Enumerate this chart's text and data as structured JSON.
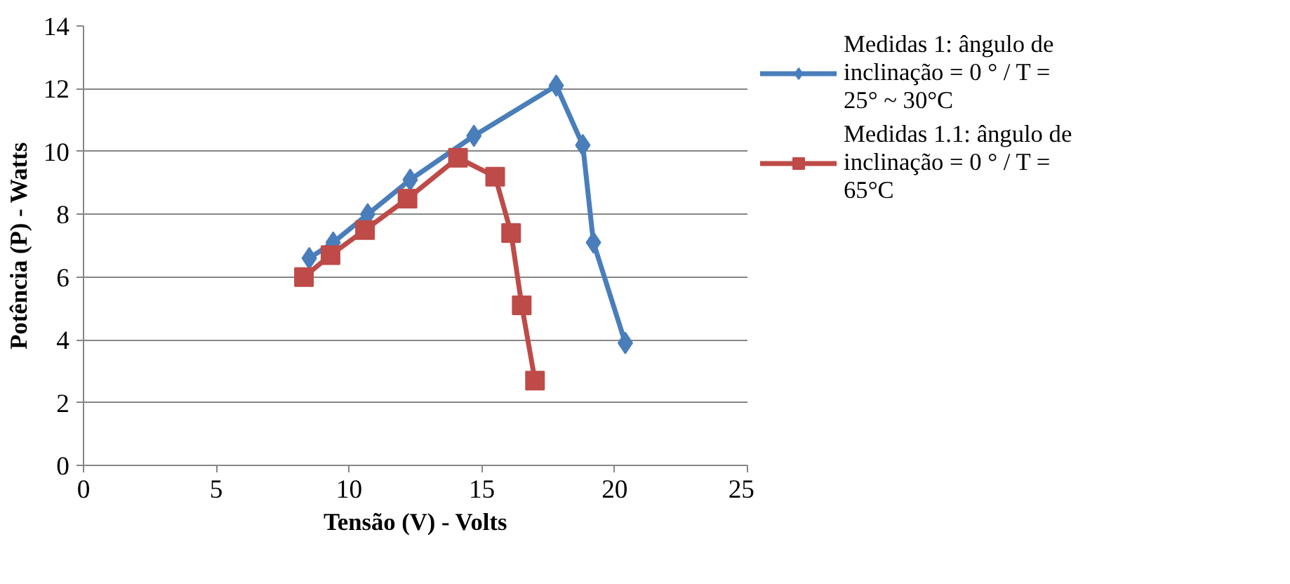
{
  "chart_data": {
    "type": "line",
    "xlabel": "Tensão (V) - Volts",
    "ylabel": "Potência (P) - Watts",
    "xlim": [
      0,
      25
    ],
    "xticks": [
      0,
      5,
      10,
      15,
      20,
      25
    ],
    "ylim": [
      0,
      14
    ],
    "yticks": [
      0,
      2,
      4,
      6,
      8,
      10,
      12,
      14
    ],
    "grid": "y",
    "legend": "right",
    "series": [
      {
        "name": "Medidas 1: ângulo de inclinação = 0 ° / T = 25° ~ 30°C",
        "color": "#4a7ebb",
        "marker": "diamond",
        "x": [
          8.5,
          9.4,
          10.7,
          12.3,
          14.7,
          17.8,
          18.8,
          19.2,
          20.4
        ],
        "values": [
          6.6,
          7.1,
          8.0,
          9.1,
          10.5,
          12.1,
          10.2,
          7.1,
          3.9
        ]
      },
      {
        "name": "Medidas 1.1: ângulo de inclinação = 0 ° / T = 65°C",
        "color": "#be4b48",
        "marker": "square",
        "x": [
          8.3,
          9.3,
          10.6,
          12.2,
          14.1,
          15.5,
          16.1,
          16.5,
          17.0
        ],
        "values": [
          6.0,
          6.7,
          7.5,
          8.5,
          9.8,
          9.2,
          7.4,
          5.1,
          2.7
        ]
      }
    ]
  }
}
